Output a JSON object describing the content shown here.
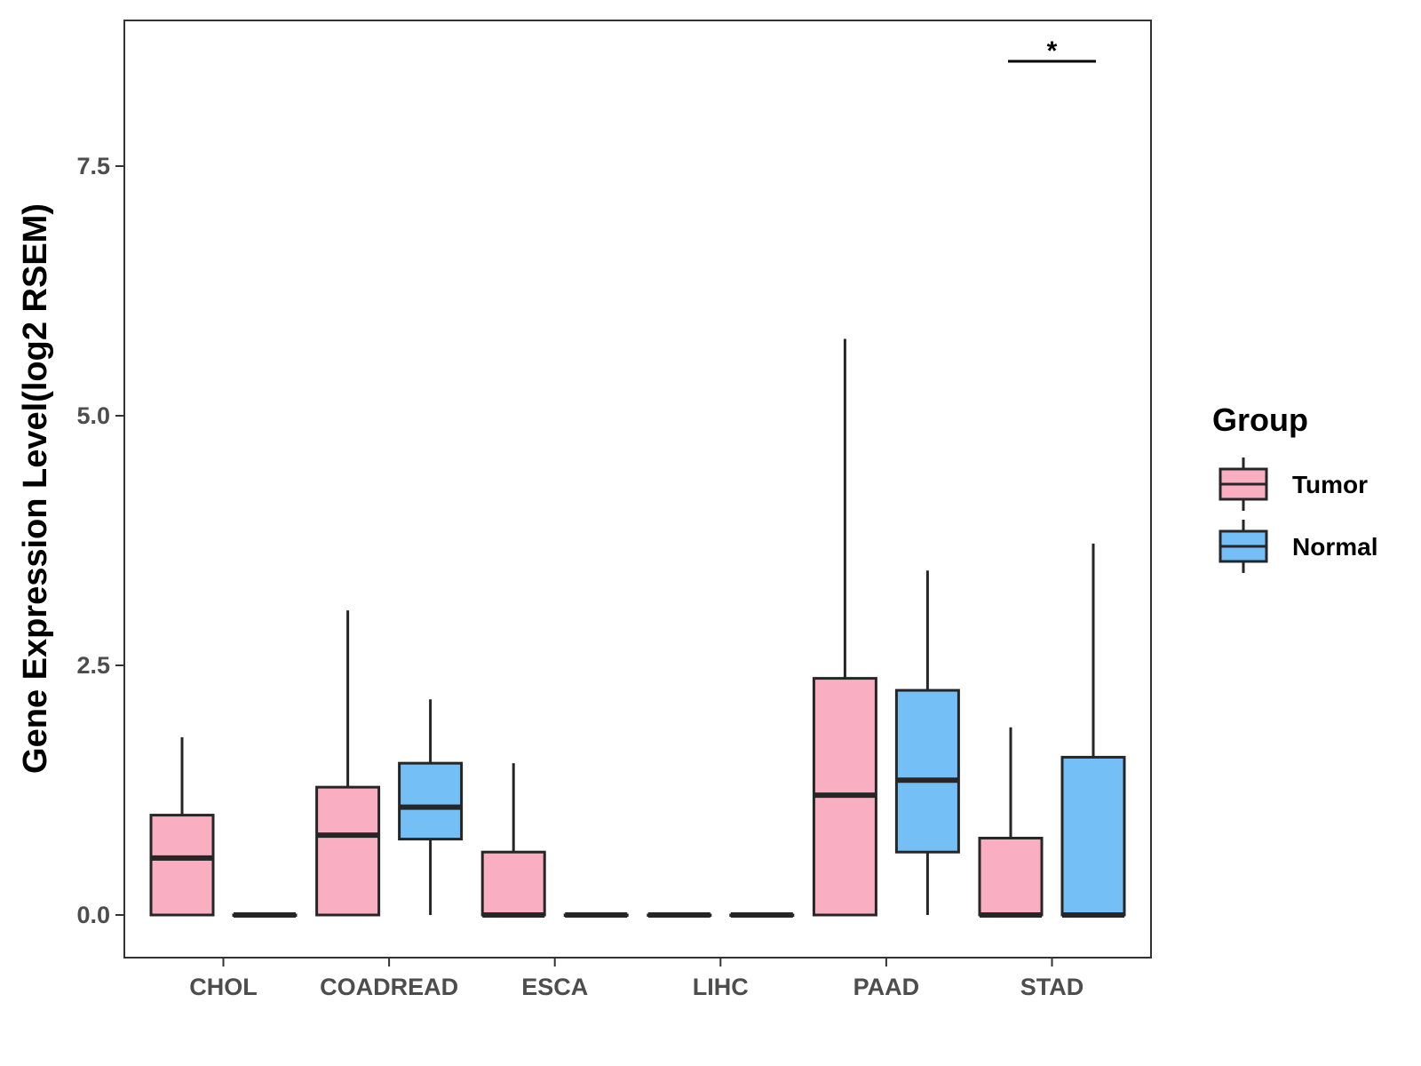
{
  "chart_data": {
    "type": "boxplot",
    "title": "",
    "xlabel": "",
    "ylabel": "Gene Expression Level(log2 RSEM)",
    "ylim": [
      -0.42,
      9.0
    ],
    "yticks": [
      {
        "value": 0.0,
        "label": "0.0"
      },
      {
        "value": 2.5,
        "label": "2.5"
      },
      {
        "value": 5.0,
        "label": "5.0"
      },
      {
        "value": 7.5,
        "label": "7.5"
      }
    ],
    "categories": [
      "CHOL",
      "COADREAD",
      "ESCA",
      "LIHC",
      "PAAD",
      "STAD"
    ],
    "legend": {
      "title": "Group",
      "position": "right",
      "entries": [
        {
          "name": "Tumor",
          "color": "#F9AFC1"
        },
        {
          "name": "Normal",
          "color": "#75BFF7"
        }
      ]
    },
    "series": [
      {
        "name": "Tumor",
        "color": "#F9AFC1",
        "boxes": [
          {
            "category": "CHOL",
            "min": 0.0,
            "q1": 0.0,
            "median": 0.57,
            "q3": 1.0,
            "max": 1.78
          },
          {
            "category": "COADREAD",
            "min": 0.0,
            "q1": 0.0,
            "median": 0.8,
            "q3": 1.28,
            "max": 3.05
          },
          {
            "category": "ESCA",
            "min": 0.0,
            "q1": 0.0,
            "median": 0.0,
            "q3": 0.63,
            "max": 1.52
          },
          {
            "category": "LIHC",
            "min": 0.0,
            "q1": 0.0,
            "median": 0.0,
            "q3": 0.0,
            "max": 0.0
          },
          {
            "category": "PAAD",
            "min": 0.0,
            "q1": 0.0,
            "median": 1.2,
            "q3": 2.37,
            "max": 5.77
          },
          {
            "category": "STAD",
            "min": 0.0,
            "q1": 0.0,
            "median": 0.0,
            "q3": 0.77,
            "max": 1.88
          }
        ]
      },
      {
        "name": "Normal",
        "color": "#75BFF7",
        "boxes": [
          {
            "category": "CHOL",
            "min": 0.0,
            "q1": 0.0,
            "median": 0.0,
            "q3": 0.0,
            "max": 0.0
          },
          {
            "category": "COADREAD",
            "min": 0.0,
            "q1": 0.76,
            "median": 1.08,
            "q3": 1.52,
            "max": 2.16
          },
          {
            "category": "ESCA",
            "min": 0.0,
            "q1": 0.0,
            "median": 0.0,
            "q3": 0.0,
            "max": 0.0
          },
          {
            "category": "LIHC",
            "min": 0.0,
            "q1": 0.0,
            "median": 0.0,
            "q3": 0.0,
            "max": 0.0
          },
          {
            "category": "PAAD",
            "min": 0.0,
            "q1": 0.63,
            "median": 1.35,
            "q3": 2.25,
            "max": 3.45
          },
          {
            "category": "STAD",
            "min": 0.0,
            "q1": 0.0,
            "median": 0.0,
            "q3": 1.58,
            "max": 3.72
          }
        ]
      }
    ],
    "annotations": [
      {
        "category": "STAD",
        "text": "*",
        "y": 8.55
      }
    ]
  }
}
